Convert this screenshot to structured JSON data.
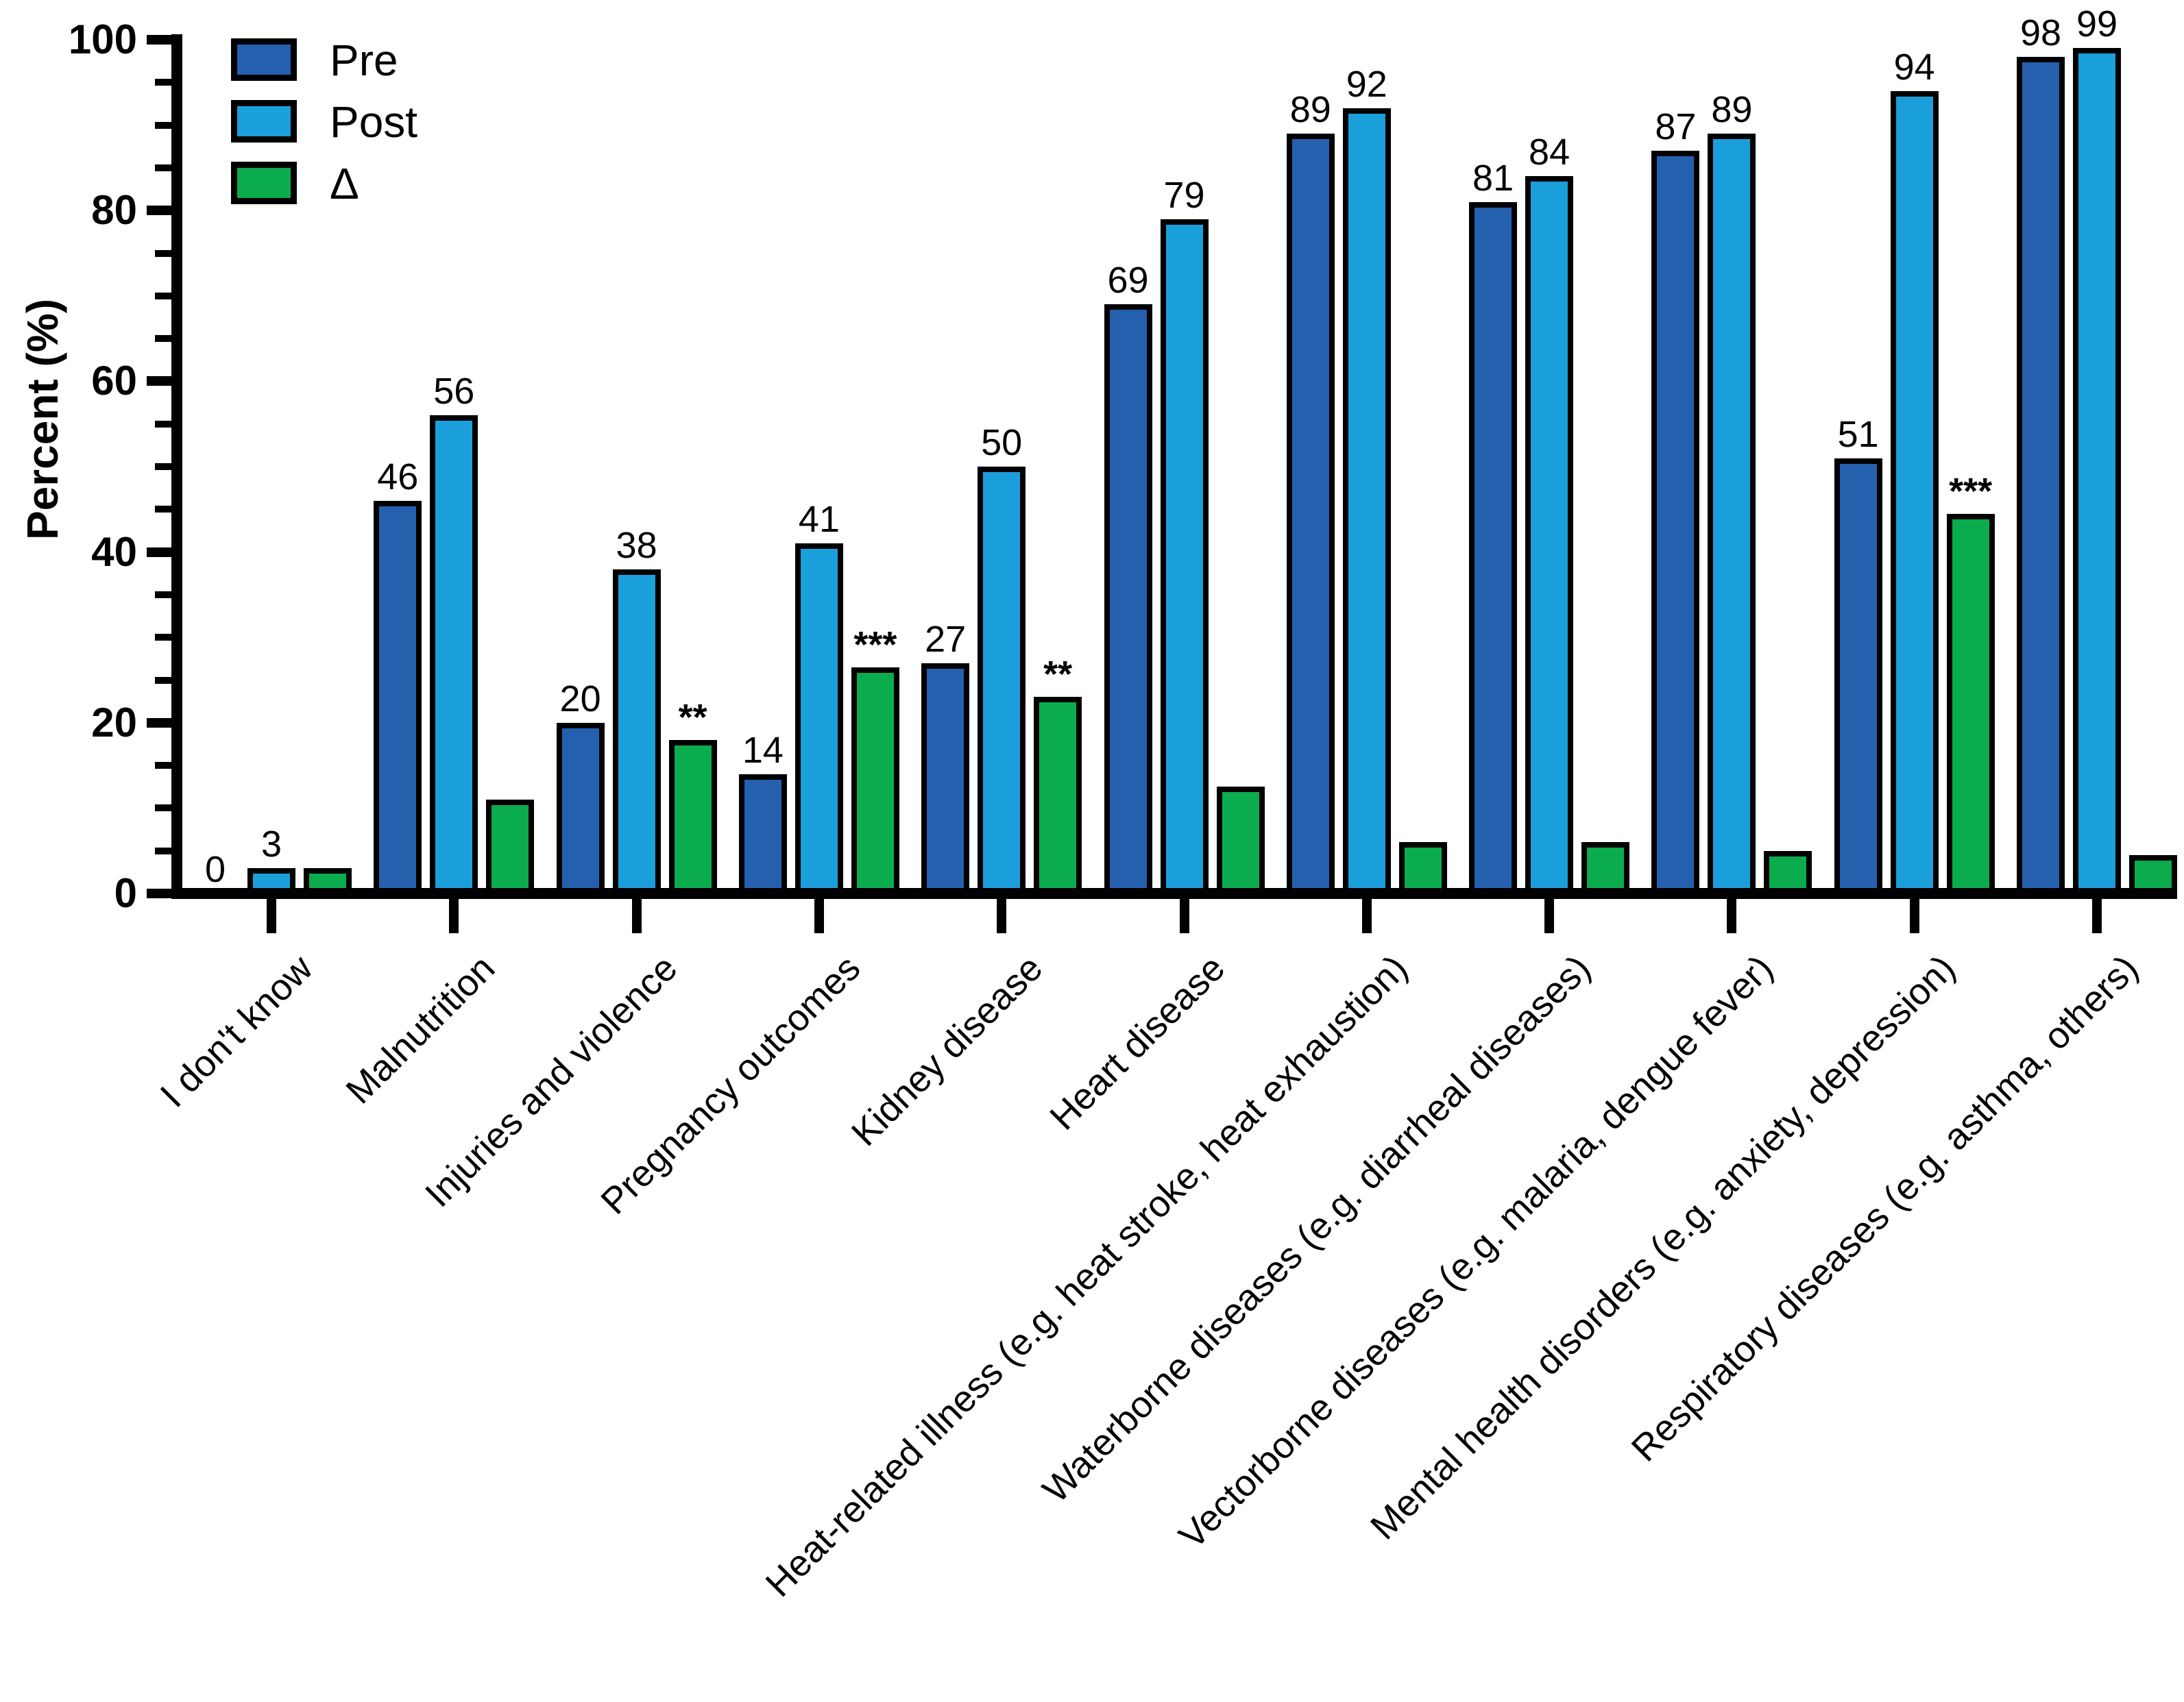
{
  "chart_data": {
    "type": "bar",
    "title": "",
    "ylabel": "Percent (%)",
    "xlabel": "",
    "ylim": [
      0,
      100
    ],
    "yticks_major": [
      0,
      20,
      40,
      60,
      80,
      100
    ],
    "ytick_minor_step": 5,
    "grid": false,
    "legend_position": "top-left-inside",
    "bar_outline_color": "#000000",
    "categories": [
      "I don't know",
      "Malnutrition",
      "Injuries and violence",
      "Pregnancy outcomes",
      "Kidney disease",
      "Heart disease",
      "Heat-related illness (e.g. heat stroke, heat exhaustion)",
      "Waterborne diseases (e.g. diarrheal diseases)",
      "Vectorborne diseases (e.g. malaria, dengue fever)",
      "Mental health disorders (e.g. anxiety, depression)",
      "Respiratory diseases (e.g. asthma, others)"
    ],
    "series": [
      {
        "name": "Pre",
        "color": "#2560AF",
        "value_labels_shown": true,
        "values": [
          0,
          46,
          20,
          14,
          27,
          69,
          89,
          81,
          87,
          51,
          98
        ]
      },
      {
        "name": "Post",
        "color": "#1A9FDA",
        "value_labels_shown": true,
        "values": [
          3,
          56,
          38,
          41,
          50,
          79,
          92,
          84,
          89,
          94,
          99
        ]
      },
      {
        "name": "Δ",
        "color": "#0BAC4D",
        "value_labels_shown": false,
        "values": [
          3,
          11,
          18,
          26.5,
          23,
          12.5,
          6,
          6,
          5,
          44.5,
          4.5
        ]
      }
    ],
    "significance": [
      "",
      "",
      "**",
      "***",
      "**",
      "",
      "",
      "",
      "",
      "***",
      ""
    ]
  }
}
